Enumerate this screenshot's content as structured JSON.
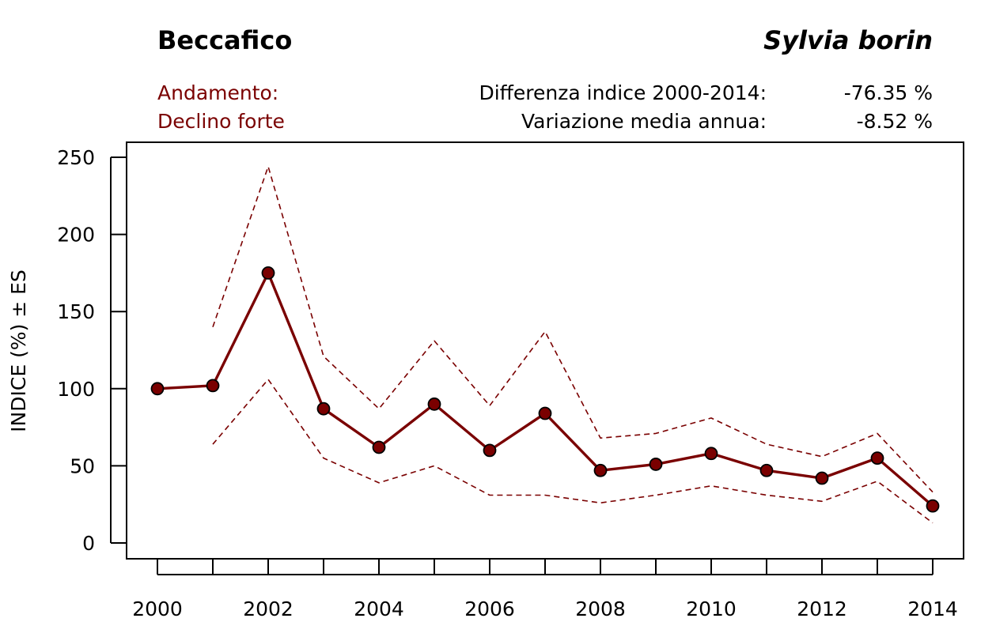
{
  "header": {
    "common_name": "Beccafico",
    "scientific_name": "Sylvia borin",
    "trend_label": "Andamento:",
    "trend_value": "Declino forte",
    "diff_label": "Differenza indice 2000-2014:",
    "diff_value": "-76.35 %",
    "annual_label": "Variazione media annua:",
    "annual_value": "-8.52 %"
  },
  "colors": {
    "series": "#7a0000",
    "text_accent": "#7a0000",
    "axis": "#000000"
  },
  "chart_data": {
    "type": "line",
    "title": "Beccafico",
    "ylabel": "INDICE (%) ± ES",
    "xlabel": "",
    "xlim": [
      2000,
      2014
    ],
    "ylim": [
      0,
      250
    ],
    "x_ticks": [
      2000,
      2001,
      2002,
      2003,
      2004,
      2005,
      2006,
      2007,
      2008,
      2009,
      2010,
      2011,
      2012,
      2013,
      2014
    ],
    "x_tick_labels": [
      "2000",
      "2002",
      "2004",
      "2006",
      "2008",
      "2010",
      "2012",
      "2014"
    ],
    "y_ticks": [
      0,
      50,
      100,
      150,
      200,
      250
    ],
    "y_tick_labels": [
      "0",
      "50",
      "100",
      "150",
      "200",
      "250"
    ],
    "x": [
      2000,
      2001,
      2002,
      2003,
      2004,
      2005,
      2006,
      2007,
      2008,
      2009,
      2010,
      2011,
      2012,
      2013,
      2014
    ],
    "series": [
      {
        "name": "Indice",
        "style": "solid-markers",
        "values": [
          100,
          102,
          175,
          87,
          62,
          90,
          60,
          84,
          47,
          51,
          58,
          47,
          42,
          55,
          24
        ]
      },
      {
        "name": "Indice + ES",
        "style": "dashed",
        "values": [
          null,
          140,
          244,
          121,
          87,
          131,
          89,
          137,
          68,
          71,
          81,
          64,
          56,
          71,
          33
        ]
      },
      {
        "name": "Indice - ES",
        "style": "dashed",
        "values": [
          null,
          64,
          106,
          55,
          39,
          50,
          31,
          31,
          26,
          31,
          37,
          31,
          27,
          40,
          13
        ]
      }
    ]
  }
}
